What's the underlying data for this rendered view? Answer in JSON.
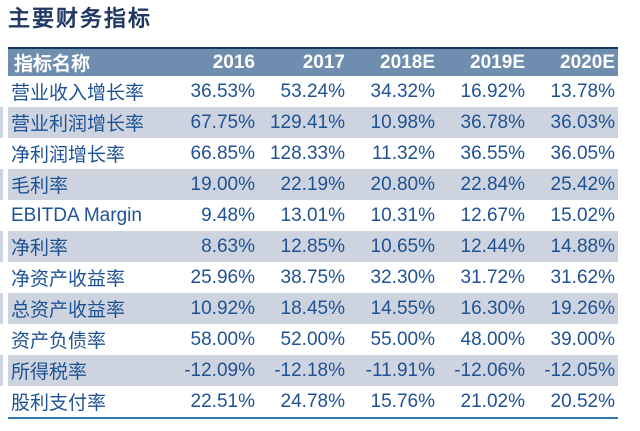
{
  "title": "主要财务指标",
  "table": {
    "header": {
      "label": "指标名称",
      "years": [
        "2016",
        "2017",
        "2018E",
        "2019E",
        "2020E"
      ]
    },
    "rows": [
      {
        "label": "营业收入增长率",
        "values": [
          "36.53%",
          "53.24%",
          "34.32%",
          "16.92%",
          "13.78%"
        ]
      },
      {
        "label": "营业利润增长率",
        "values": [
          "67.75%",
          "129.41%",
          "10.98%",
          "36.78%",
          "36.03%"
        ]
      },
      {
        "label": "净利润增长率",
        "values": [
          "66.85%",
          "128.33%",
          "11.32%",
          "36.55%",
          "36.05%"
        ]
      },
      {
        "label": "毛利率",
        "values": [
          "19.00%",
          "22.19%",
          "20.80%",
          "22.84%",
          "25.42%"
        ]
      },
      {
        "label": "EBITDA Margin",
        "values": [
          "9.48%",
          "13.01%",
          "10.31%",
          "12.67%",
          "15.02%"
        ]
      },
      {
        "label": "净利率",
        "values": [
          "8.63%",
          "12.85%",
          "10.65%",
          "12.44%",
          "14.88%"
        ]
      },
      {
        "label": "净资产收益率",
        "values": [
          "25.96%",
          "38.75%",
          "32.30%",
          "31.72%",
          "31.62%"
        ]
      },
      {
        "label": "总资产收益率",
        "values": [
          "10.92%",
          "18.45%",
          "14.55%",
          "16.30%",
          "19.26%"
        ]
      },
      {
        "label": "资产负债率",
        "values": [
          "58.00%",
          "52.00%",
          "55.00%",
          "48.00%",
          "39.00%"
        ]
      },
      {
        "label": "所得税率",
        "values": [
          "-12.09%",
          "-12.18%",
          "-11.91%",
          "-12.06%",
          "-12.05%"
        ]
      },
      {
        "label": "股利支付率",
        "values": [
          "22.51%",
          "24.78%",
          "15.76%",
          "21.02%",
          "20.52%"
        ]
      }
    ]
  },
  "colors": {
    "title_text": "#1F3864",
    "header_bg": "#6F8DAE",
    "header_text": "#FFFFFF",
    "header_top_border": "#17375E",
    "alt_row_bg": "#CDD4DF",
    "data_text": "#1F5294",
    "bottom_border": "#2E75B6"
  }
}
